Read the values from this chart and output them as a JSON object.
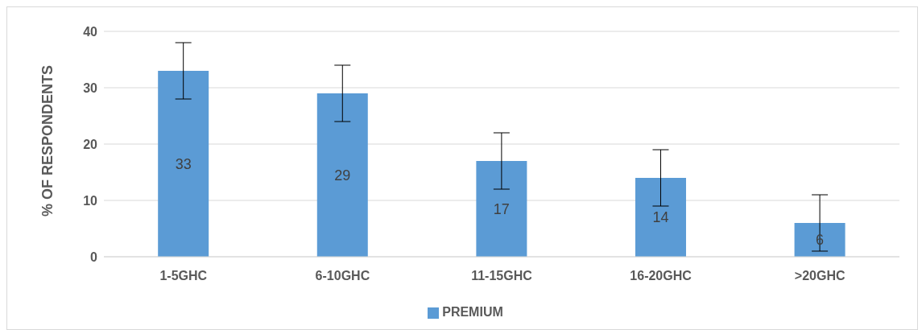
{
  "chart_data": {
    "type": "bar",
    "ylabel": "% OF RESPONDENTS",
    "categories": [
      "1-5GHC",
      "6-10GHC",
      "11-15GHC",
      "16-20GHC",
      ">20GHC"
    ],
    "series": [
      {
        "name": "PREMIUM",
        "color": "#5b9bd5",
        "values": [
          33,
          29,
          17,
          14,
          6
        ],
        "errors": [
          5,
          5,
          5,
          5,
          5
        ]
      }
    ],
    "ylim": [
      0,
      40
    ],
    "yticks": [
      0,
      10,
      20,
      30,
      40
    ],
    "grid": "y",
    "legend": "bottom",
    "data_labels": true
  }
}
